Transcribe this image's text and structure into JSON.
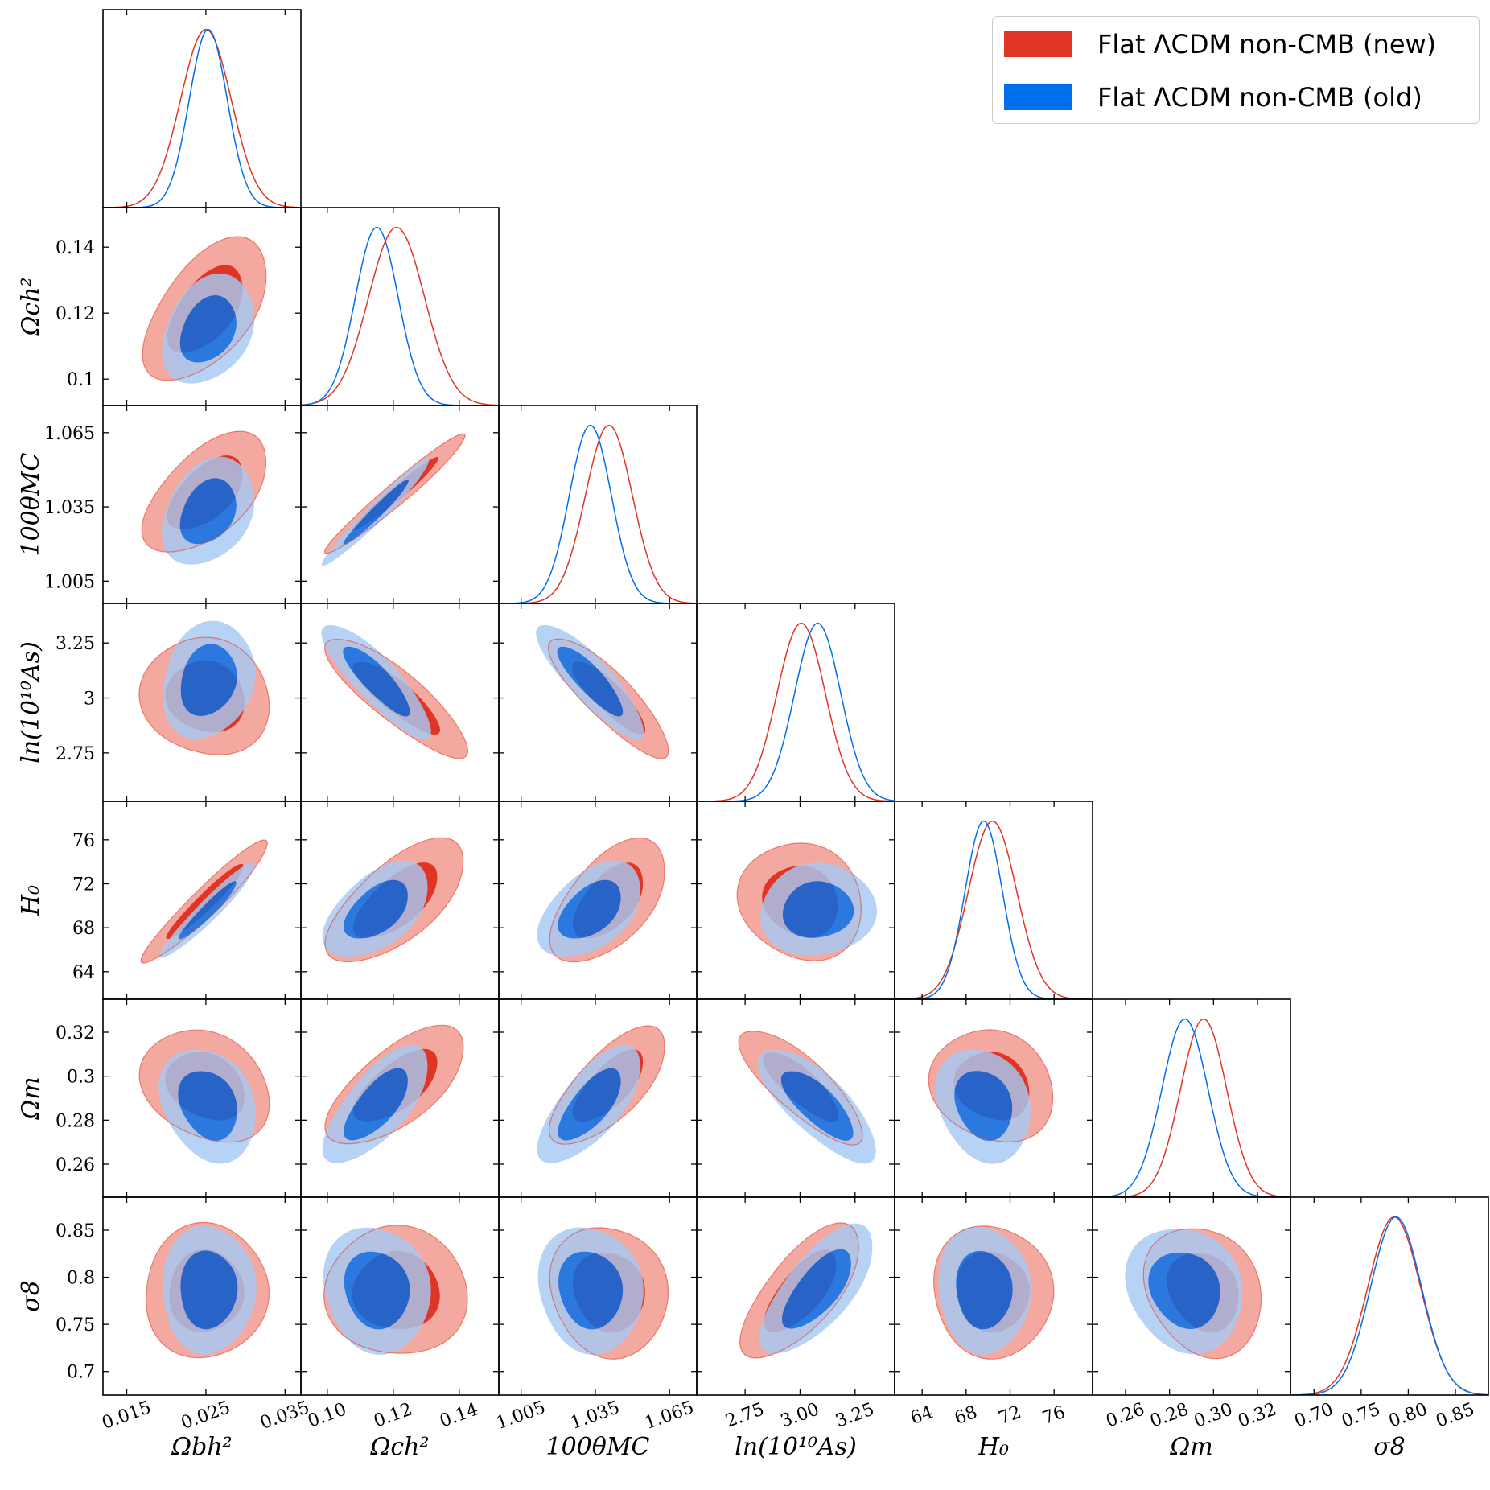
{
  "colors": {
    "new": "#e03524",
    "new_light": "#f3a9a0",
    "old": "#006fed",
    "old_light": "#a7c9f3",
    "old_dark": "#2563c9"
  },
  "legend": {
    "position": "top-right",
    "entries": [
      {
        "label": "Flat ΛCDM non-CMB (new)",
        "color": "#e03524"
      },
      {
        "label": "Flat ΛCDM non-CMB (old)",
        "color": "#006fed"
      }
    ]
  },
  "chart_data": {
    "type": "triangle-corner",
    "params": [
      {
        "key": "omb",
        "label": "Ωbh²",
        "range": [
          0.012,
          0.037
        ],
        "ticks": [
          0.015,
          0.025,
          0.035
        ],
        "tick_labels": [
          "0.015",
          "0.025",
          "0.035"
        ],
        "new": {
          "mean": 0.025,
          "sd": 0.0032
        },
        "old": {
          "mean": 0.0253,
          "sd": 0.0024
        }
      },
      {
        "key": "omc",
        "label": "Ωch²",
        "range": [
          0.092,
          0.152
        ],
        "ticks": [
          0.1,
          0.12,
          0.14
        ],
        "tick_labels": [
          "0.10",
          "0.12",
          "0.14"
        ],
        "tick_labels_y": [
          "0.1",
          "0.12",
          "0.14"
        ],
        "new": {
          "mean": 0.121,
          "sd": 0.0085
        },
        "old": {
          "mean": 0.115,
          "sd": 0.0065
        }
      },
      {
        "key": "theta",
        "label": "100θMC",
        "range": [
          0.996,
          1.076
        ],
        "ticks": [
          1.005,
          1.035,
          1.065
        ],
        "tick_labels": [
          "1.005",
          "1.035",
          "1.065"
        ],
        "new": {
          "mean": 1.0405,
          "sd": 0.0095
        },
        "old": {
          "mean": 1.033,
          "sd": 0.0085
        }
      },
      {
        "key": "las",
        "label": "ln(10¹⁰As)",
        "range": [
          2.53,
          3.43
        ],
        "ticks": [
          2.75,
          3.0,
          3.25
        ],
        "tick_labels": [
          "2.75",
          "3.00",
          "3.25"
        ],
        "tick_labels_y": [
          "2.75",
          "3",
          "3.25"
        ],
        "new": {
          "mean": 3.005,
          "sd": 0.11
        },
        "old": {
          "mean": 3.08,
          "sd": 0.105
        }
      },
      {
        "key": "h0",
        "label": "H₀",
        "range": [
          61.5,
          79.5
        ],
        "ticks": [
          64,
          68,
          72,
          76
        ],
        "tick_labels": [
          "64",
          "68",
          "72",
          "76"
        ],
        "new": {
          "mean": 70.4,
          "sd": 2.2
        },
        "old": {
          "mean": 69.6,
          "sd": 1.7
        }
      },
      {
        "key": "om",
        "label": "Ωm",
        "range": [
          0.245,
          0.335
        ],
        "ticks": [
          0.26,
          0.28,
          0.3,
          0.32
        ],
        "tick_labels": [
          "0.26",
          "0.28",
          "0.30",
          "0.32"
        ],
        "tick_labels_y": [
          "0.26",
          "0.28",
          "0.3",
          "0.32"
        ],
        "new": {
          "mean": 0.2955,
          "sd": 0.0105
        },
        "old": {
          "mean": 0.287,
          "sd": 0.0105
        }
      },
      {
        "key": "s8",
        "label": "σ8",
        "range": [
          0.675,
          0.885
        ],
        "ticks": [
          0.7,
          0.75,
          0.8,
          0.85
        ],
        "tick_labels": [
          "0.70",
          "0.75",
          "0.80",
          "0.85"
        ],
        "tick_labels_y": [
          "0.7",
          "0.75",
          "0.8",
          "0.85"
        ],
        "new": {
          "mean": 0.785,
          "sd": 0.028
        },
        "old": {
          "mean": 0.787,
          "sd": 0.027
        }
      }
    ],
    "correlations": {
      "new": [
        [
          1,
          0.55,
          0.55,
          -0.1,
          0.95,
          -0.25,
          0.05
        ],
        [
          0.55,
          1,
          0.97,
          -0.85,
          0.65,
          0.65,
          -0.05
        ],
        [
          0.55,
          0.97,
          1,
          -0.85,
          0.55,
          0.7,
          -0.05
        ],
        [
          -0.1,
          -0.85,
          -0.85,
          1,
          -0.1,
          -0.8,
          0.7
        ],
        [
          0.95,
          0.65,
          0.55,
          -0.1,
          1,
          -0.15,
          0.0
        ],
        [
          -0.25,
          0.65,
          0.7,
          -0.8,
          -0.15,
          1,
          -0.15
        ],
        [
          0.05,
          -0.05,
          -0.05,
          0.7,
          0.0,
          -0.15,
          1
        ]
      ],
      "old": [
        [
          1,
          0.3,
          0.3,
          0.2,
          0.95,
          -0.2,
          0.05
        ],
        [
          0.3,
          1,
          0.97,
          -0.85,
          0.5,
          0.7,
          -0.05
        ],
        [
          0.3,
          0.97,
          1,
          -0.85,
          0.45,
          0.7,
          -0.05
        ],
        [
          0.2,
          -0.85,
          -0.85,
          1,
          0.0,
          -0.75,
          0.7
        ],
        [
          0.95,
          0.5,
          0.45,
          0.0,
          1,
          -0.15,
          0.0
        ],
        [
          -0.2,
          0.7,
          0.7,
          -0.75,
          -0.15,
          1,
          -0.1
        ],
        [
          0.05,
          -0.05,
          -0.05,
          0.7,
          0.0,
          -0.1,
          1
        ]
      ]
    }
  }
}
